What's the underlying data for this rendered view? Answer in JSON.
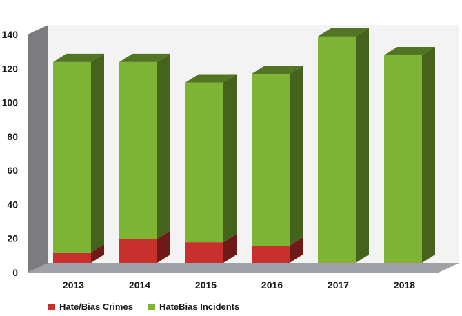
{
  "chart_data": {
    "type": "bar",
    "stacked": true,
    "three_d": true,
    "categories": [
      "2013",
      "2014",
      "2015",
      "2016",
      "2017",
      "2018"
    ],
    "series": [
      {
        "name": "Hate/Bias Crimes",
        "color": "#c8302e",
        "values": [
          11,
          19,
          17,
          15,
          5,
          5
        ]
      },
      {
        "name": "HateBias Incidents",
        "color": "#7db434",
        "values": [
          112,
          104,
          94,
          101,
          133,
          122
        ]
      }
    ],
    "yticks": [
      "0",
      "20",
      "40",
      "60",
      "80",
      "100",
      "120",
      "140"
    ],
    "ylim": [
      0,
      140
    ],
    "grid": false,
    "legend_position": "bottom-left"
  }
}
